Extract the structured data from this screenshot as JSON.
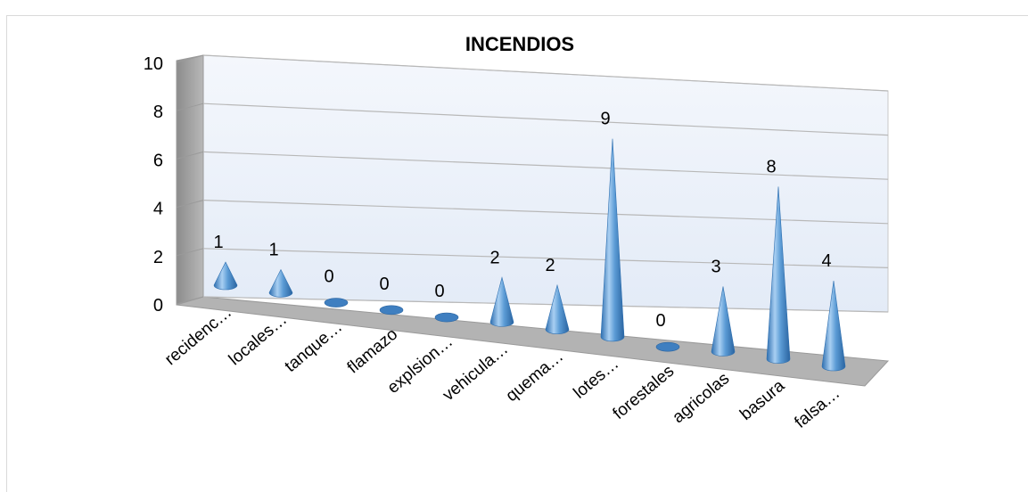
{
  "chart_data": {
    "type": "bar",
    "title": "INCENDIOS",
    "categories": [
      "recidenc…",
      "locales…",
      "tanque…",
      "flamazo",
      "explsion…",
      "vehicula…",
      "quema…",
      "lotes…",
      "forestales",
      "agricolas",
      "basura",
      "falsa…"
    ],
    "values": [
      1,
      1,
      0,
      0,
      0,
      2,
      2,
      9,
      0,
      3,
      8,
      4
    ],
    "yticks": [
      "0",
      "2",
      "4",
      "6",
      "8",
      "10"
    ],
    "ylim": [
      0,
      10
    ],
    "grid": true,
    "legend": "none",
    "style": "3d-cone",
    "colors": {
      "cone": "#5b9bd5",
      "cone_dark": "#2e6fb0",
      "floor": "#b0b0b0",
      "wall": "#eef3fb"
    }
  }
}
